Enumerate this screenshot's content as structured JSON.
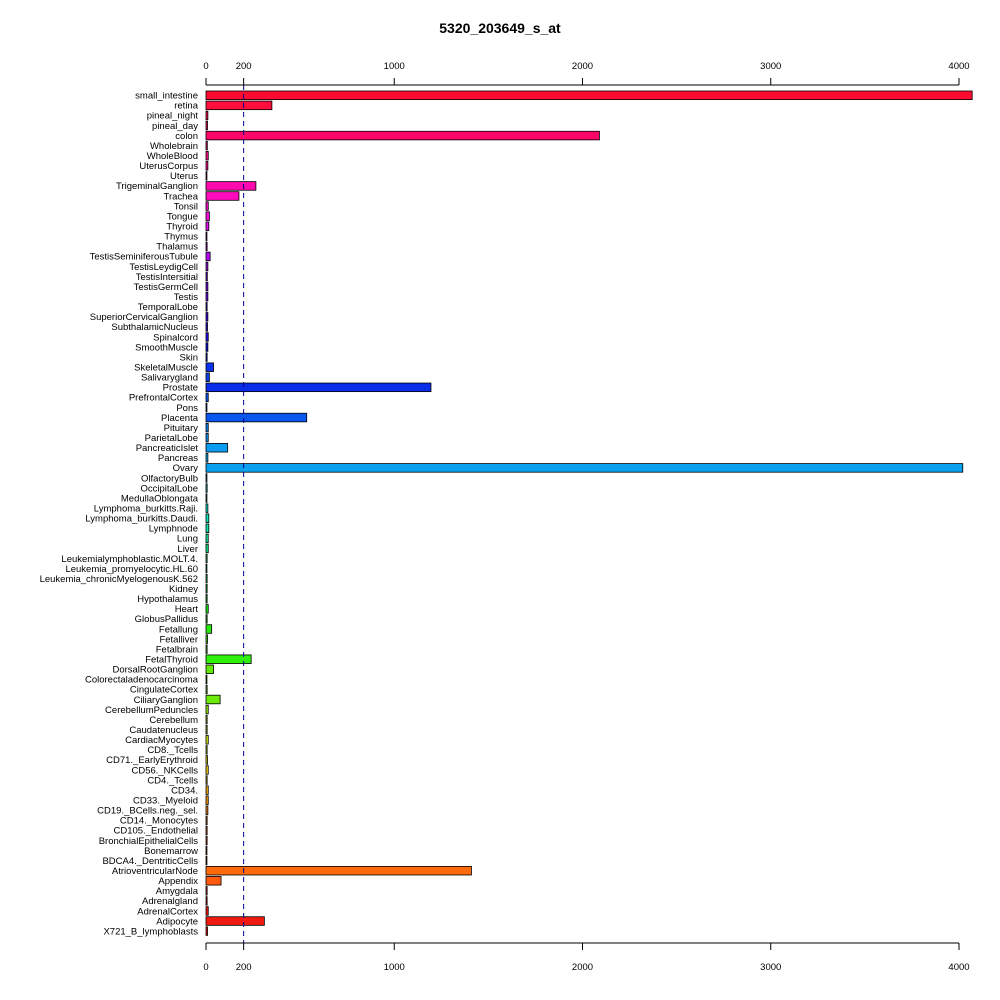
{
  "chart_data": {
    "type": "bar",
    "orientation": "horizontal",
    "title": "5320_203649_s_at",
    "xlabel": "",
    "ylabel": "",
    "xlim": [
      0,
      4000
    ],
    "x_ticks": [
      0,
      200,
      1000,
      2000,
      3000,
      4000
    ],
    "x_axis_positions": [
      "top",
      "bottom"
    ],
    "reference_line": {
      "value": 200,
      "style": "dashed",
      "color": "#00008B"
    },
    "grid": false,
    "legend": "none",
    "categories": [
      "small_intestine",
      "retina",
      "pineal_night",
      "pineal_day",
      "colon",
      "Wholebrain",
      "WholeBlood",
      "UterusCorpus",
      "Uterus",
      "TrigeminalGanglion",
      "Trachea",
      "Tonsil",
      "Tongue",
      "Thyroid",
      "Thymus",
      "Thalamus",
      "TestisSeminiferousTubule",
      "TestisLeydigCell",
      "TestisIntersitial",
      "TestisGermCell",
      "Testis",
      "TemporalLobe",
      "SuperiorCervicalGanglion",
      "SubthalamicNucleus",
      "Spinalcord",
      "SmoothMuscle",
      "Skin",
      "SkeletalMuscle",
      "Salivarygland",
      "Prostate",
      "PrefrontalCortex",
      "Pons",
      "Placenta",
      "Pituitary",
      "ParietalLobe",
      "PancreaticIslet",
      "Pancreas",
      "Ovary",
      "OlfactoryBulb",
      "OccipitalLobe",
      "MedullaOblongata",
      "Lymphoma_burkitts.Raji.",
      "Lymphoma_burkitts.Daudi.",
      "Lymphnode",
      "Lung",
      "Liver",
      "Leukemialymphoblastic.MOLT.4.",
      "Leukemia_promyelocytic.HL.60",
      "Leukemia_chronicMyelogenousK.562",
      "Kidney",
      "Hypothalamus",
      "Heart",
      "GlobusPallidus",
      "Fetallung",
      "Fetalliver",
      "Fetalbrain",
      "FetalThyroid",
      "DorsalRootGanglion",
      "Colorectaladenocarcinoma",
      "CingulateCortex",
      "CiliaryGanglion",
      "CerebellumPeduncles",
      "Cerebellum",
      "Caudatenucleus",
      "CardiacMyocytes",
      "CD8._Tcells",
      "CD71._EarlyErythroid",
      "CD56._NKCells",
      "CD4._Tcells",
      "CD34.",
      "CD33._Myeloid",
      "CD19._BCells.neg._sel.",
      "CD14._Monocytes",
      "CD105._Endothelial",
      "BronchialEpithelialCells",
      "Bonemarrow",
      "BDCA4._DentriticCells",
      "AtrioventricularNode",
      "Appendix",
      "Amygdala",
      "Adrenalgland",
      "AdrenalCortex",
      "Adipocyte",
      "X721_B_lymphoblasts"
    ],
    "values": [
      4070,
      350,
      10,
      8,
      2090,
      7,
      12,
      10,
      5,
      265,
      175,
      12,
      18,
      15,
      5,
      6,
      22,
      10,
      7,
      10,
      10,
      6,
      10,
      8,
      12,
      10,
      6,
      40,
      18,
      1195,
      12,
      5,
      535,
      12,
      12,
      115,
      10,
      4020,
      5,
      6,
      5,
      10,
      15,
      15,
      12,
      12,
      6,
      5,
      6,
      6,
      6,
      12,
      6,
      30,
      8,
      6,
      240,
      40,
      5,
      6,
      75,
      12,
      6,
      6,
      12,
      6,
      8,
      12,
      6,
      12,
      12,
      10,
      6,
      6,
      6,
      5,
      5,
      1410,
      80,
      6,
      6,
      12,
      310,
      8
    ],
    "colors": [
      "#FF0A30",
      "#FF0E3E",
      "#FF0B4C",
      "#FF0C5A",
      "#FF0768",
      "#FF0676",
      "#FF0C84",
      "#FF0D92",
      "#FF0AA0",
      "#FF0AAE",
      "#FF0ABC",
      "#FF0ACA",
      "#FB0ADE",
      "#E60AF0",
      "#D40AF0",
      "#C20AF0",
      "#B00AF0",
      "#9E0AF0",
      "#8C0AF0",
      "#7A0AF0",
      "#680AF0",
      "#560AF0",
      "#440AF0",
      "#320AF0",
      "#200AF0",
      "#0E10F0",
      "#0A20F0",
      "#0A32F0",
      "#0A44F0",
      "#0A2EE8",
      "#0A56F0",
      "#0A68F0",
      "#0A57EE",
      "#0A80F0",
      "#0A92F0",
      "#0A9CF0",
      "#0AAEF0",
      "#0AA2F0",
      "#0AC0F0",
      "#0AD2F0",
      "#0AE0E8",
      "#0AE8D4",
      "#0AE8C0",
      "#0AE8AC",
      "#0AE898",
      "#0AE884",
      "#0AE870",
      "#0AE85C",
      "#0AE848",
      "#0AE834",
      "#0AE820",
      "#14E80A",
      "#22E80A",
      "#2AE80A",
      "#3CE80A",
      "#4EE80A",
      "#2EF00A",
      "#62E80A",
      "#74E80A",
      "#86E80A",
      "#6CEA0A",
      "#98E80A",
      "#AAE80A",
      "#BCE80A",
      "#CEE80A",
      "#E0E80A",
      "#EEDE0A",
      "#F0CC0A",
      "#F0BA0A",
      "#F0A80A",
      "#F0960A",
      "#F0840A",
      "#F0720A",
      "#F0600A",
      "#F04E0A",
      "#F03C0A",
      "#F02A0A",
      "#FF6A0A",
      "#FF5A10",
      "#F0200A",
      "#F0180A",
      "#F0140A",
      "#F01A10",
      "#F0100A"
    ]
  }
}
